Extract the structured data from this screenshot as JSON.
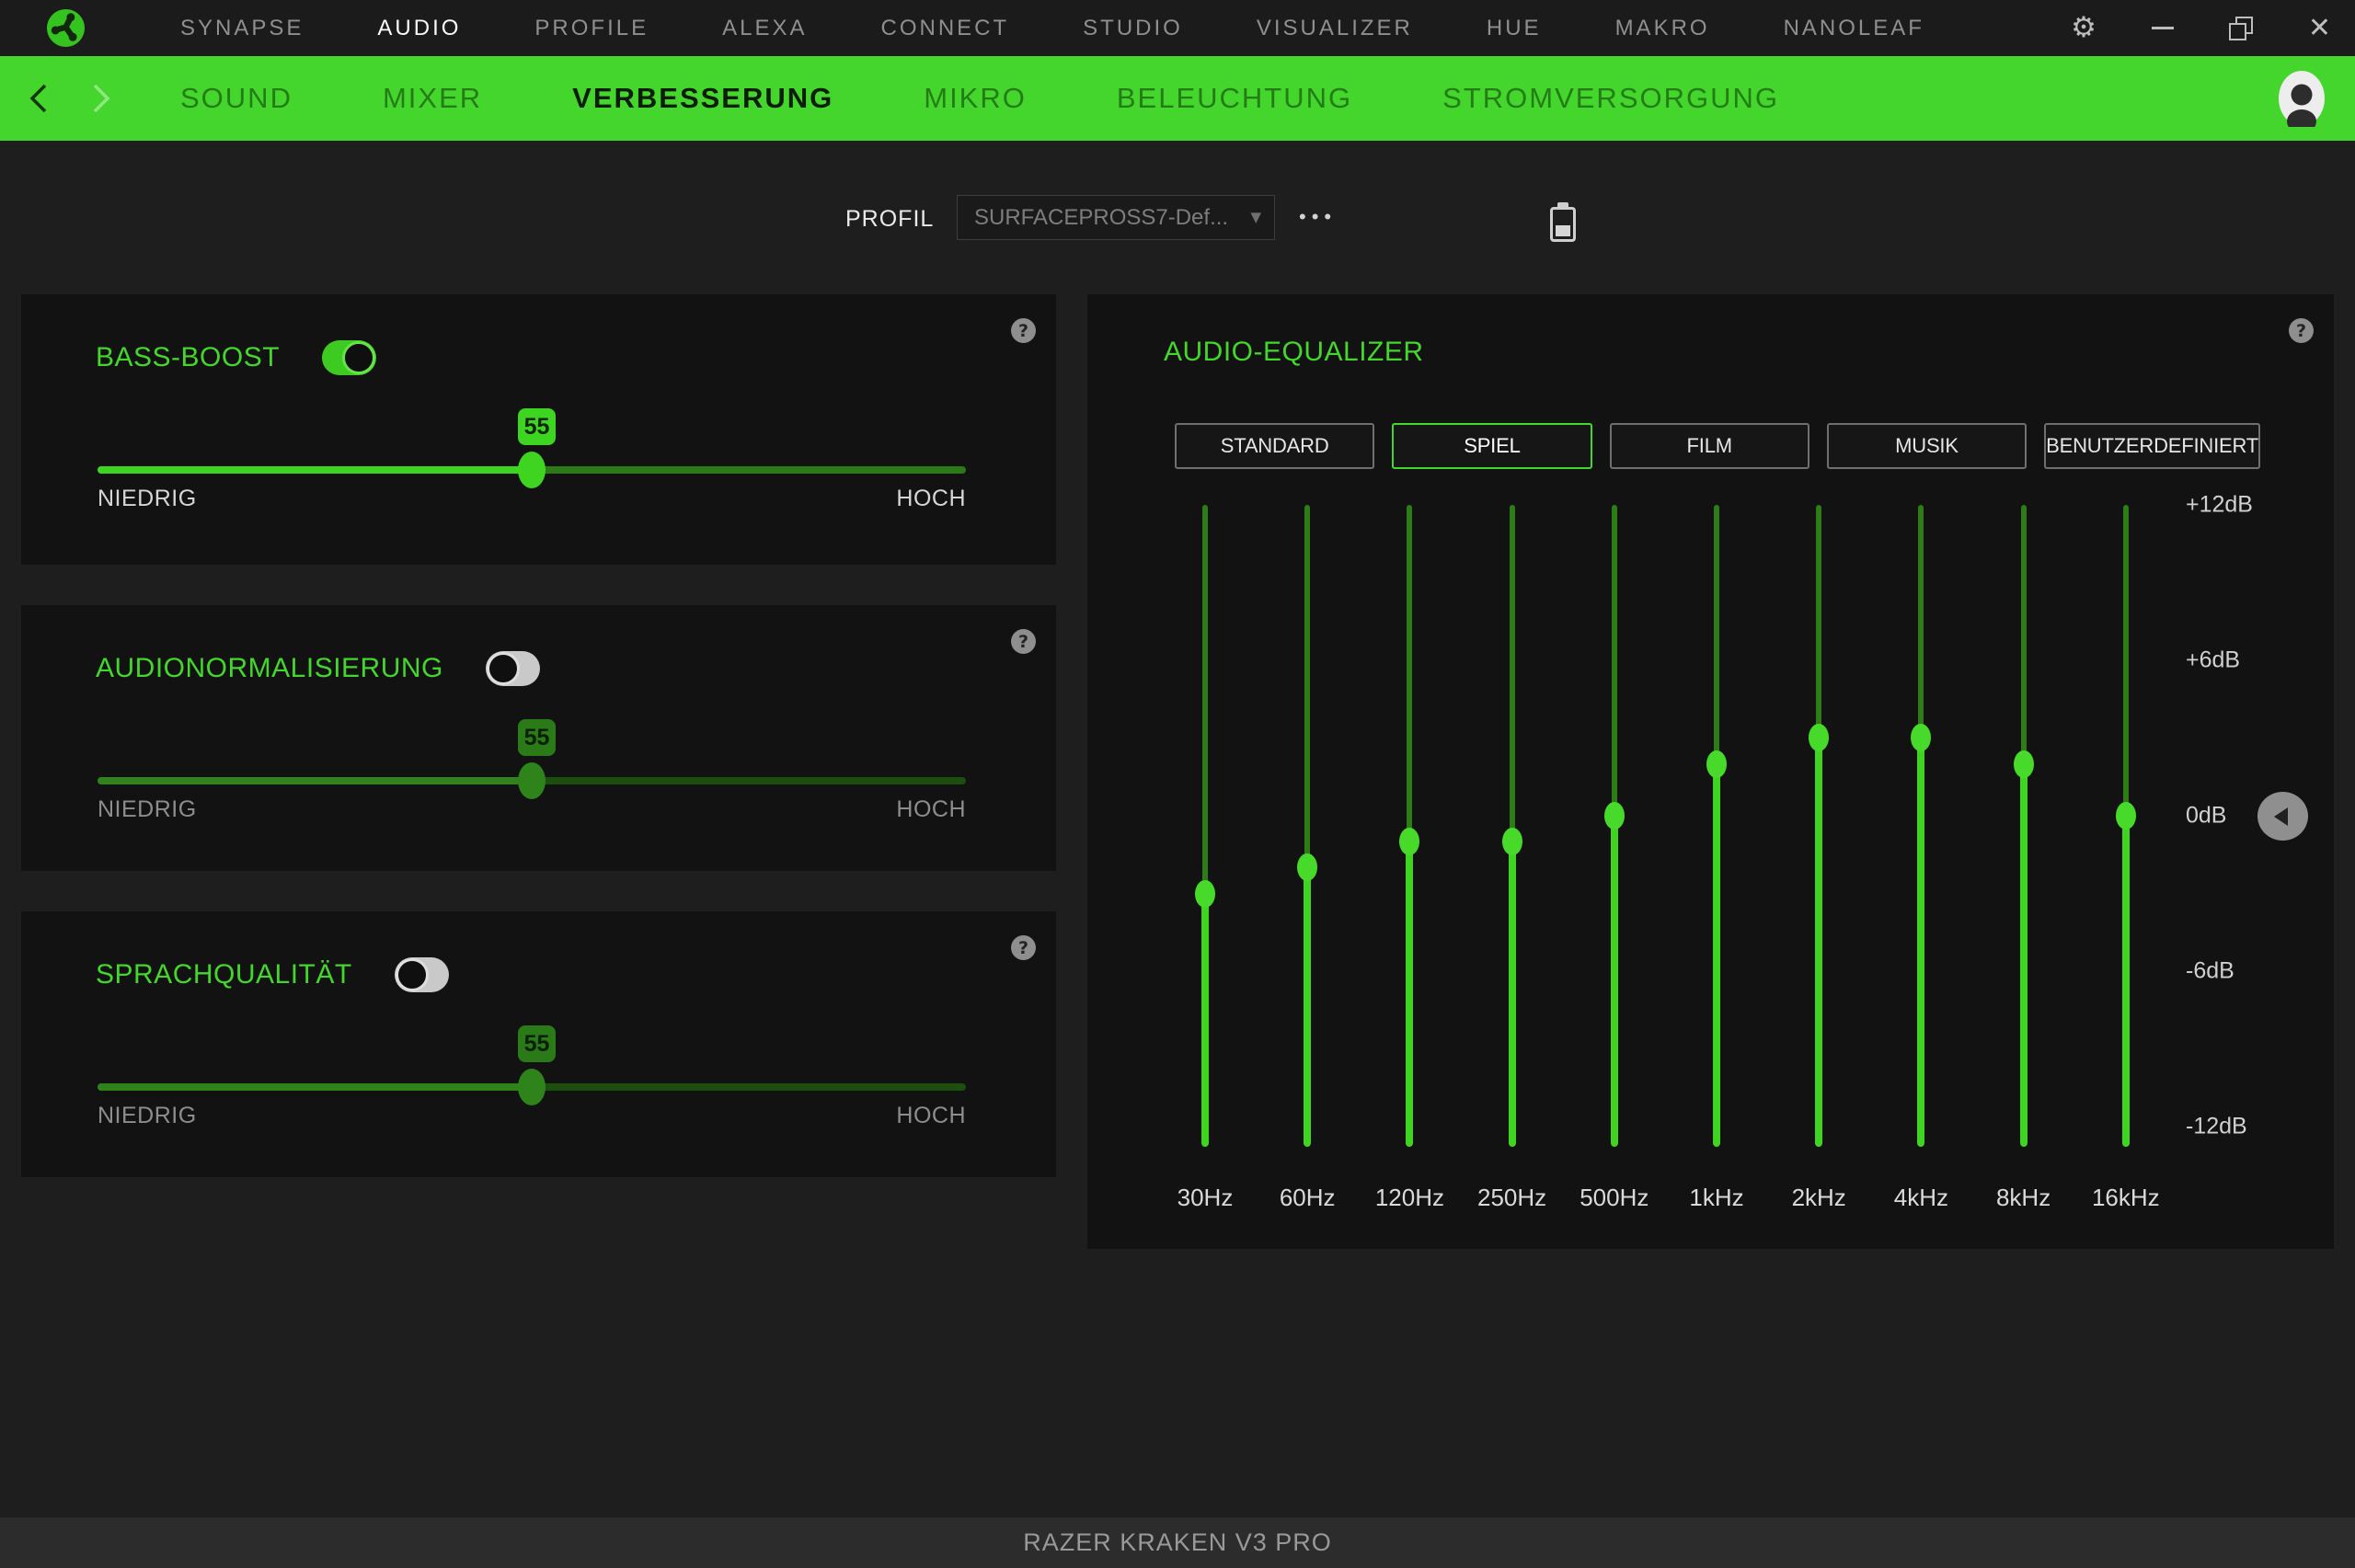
{
  "colors": {
    "accent_green": "#44d62c",
    "nav_bar_green": "#44d62c",
    "page_bg": "#1e1e1e",
    "panel_bg": "#121212",
    "footer_bg": "#2c2c2c"
  },
  "titlebar": {
    "menu": [
      "SYNAPSE",
      "AUDIO",
      "PROFILE",
      "ALEXA",
      "CONNECT",
      "STUDIO",
      "VISUALIZER",
      "HUE",
      "MAKRO",
      "NANOLEAF"
    ],
    "active_item": "AUDIO",
    "window_controls": [
      "settings",
      "minimize",
      "restore",
      "close"
    ]
  },
  "subnav": {
    "tabs": [
      "SOUND",
      "MIXER",
      "VERBESSERUNG",
      "MIKRO",
      "BELEUCHTUNG",
      "STROMVERSORGUNG"
    ],
    "active_tab": "VERBESSERUNG"
  },
  "profile_bar": {
    "label": "PROFIL",
    "selected_profile": "SURFACEPROSS7-Def...",
    "menu_dots": "•••",
    "battery_level": "low"
  },
  "enhancements": [
    {
      "title": "BASS-BOOST",
      "enabled": true,
      "value": "55",
      "min_label": "NIEDRIG",
      "max_label": "HOCH"
    },
    {
      "title": "AUDIONORMALISIERUNG",
      "enabled": false,
      "value": "55",
      "min_label": "NIEDRIG",
      "max_label": "HOCH"
    },
    {
      "title": "SPRACHQUALITÄT",
      "enabled": false,
      "value": "55",
      "min_label": "NIEDRIG",
      "max_label": "HOCH"
    }
  ],
  "equalizer": {
    "title": "AUDIO-EQUALIZER",
    "presets": [
      "STANDARD",
      "SPIEL",
      "FILM",
      "MUSIK",
      "BENUTZERDEFINIERT"
    ],
    "active_preset": "SPIEL",
    "db_labels": [
      "+12dB",
      "+6dB",
      "0dB",
      "-6dB",
      "-12dB"
    ],
    "db_range": [
      -12,
      12
    ],
    "bands": [
      {
        "freq": "30Hz",
        "db": -3
      },
      {
        "freq": "60Hz",
        "db": -2
      },
      {
        "freq": "120Hz",
        "db": -1
      },
      {
        "freq": "250Hz",
        "db": -1
      },
      {
        "freq": "500Hz",
        "db": 0
      },
      {
        "freq": "1kHz",
        "db": 2
      },
      {
        "freq": "2kHz",
        "db": 3
      },
      {
        "freq": "4kHz",
        "db": 3
      },
      {
        "freq": "8kHz",
        "db": 2
      },
      {
        "freq": "16kHz",
        "db": 0
      }
    ]
  },
  "footer": {
    "device_name": "RAZER KRAKEN V3 PRO"
  }
}
